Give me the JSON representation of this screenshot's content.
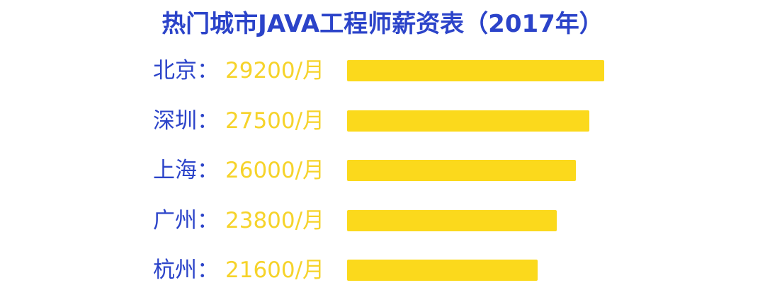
{
  "title": "热门城市JAVA工程师薪资表（2017年）",
  "colors": {
    "title": "#2b43c9",
    "city": "#2b43c9",
    "salary": "#f6d32a",
    "bar": "#fbd91c"
  },
  "chart_data": {
    "type": "bar",
    "orientation": "horizontal",
    "title": "热门城市JAVA工程师薪资表（2017年）",
    "categories": [
      "北京",
      "深圳",
      "上海",
      "广州",
      "杭州"
    ],
    "values": [
      29200,
      27500,
      26000,
      23800,
      21600
    ],
    "labels": [
      "29200/月",
      "27500/月",
      "26000/月",
      "23800/月",
      "21600/月"
    ],
    "label_separator": "：",
    "grid": false,
    "legend": "none"
  }
}
